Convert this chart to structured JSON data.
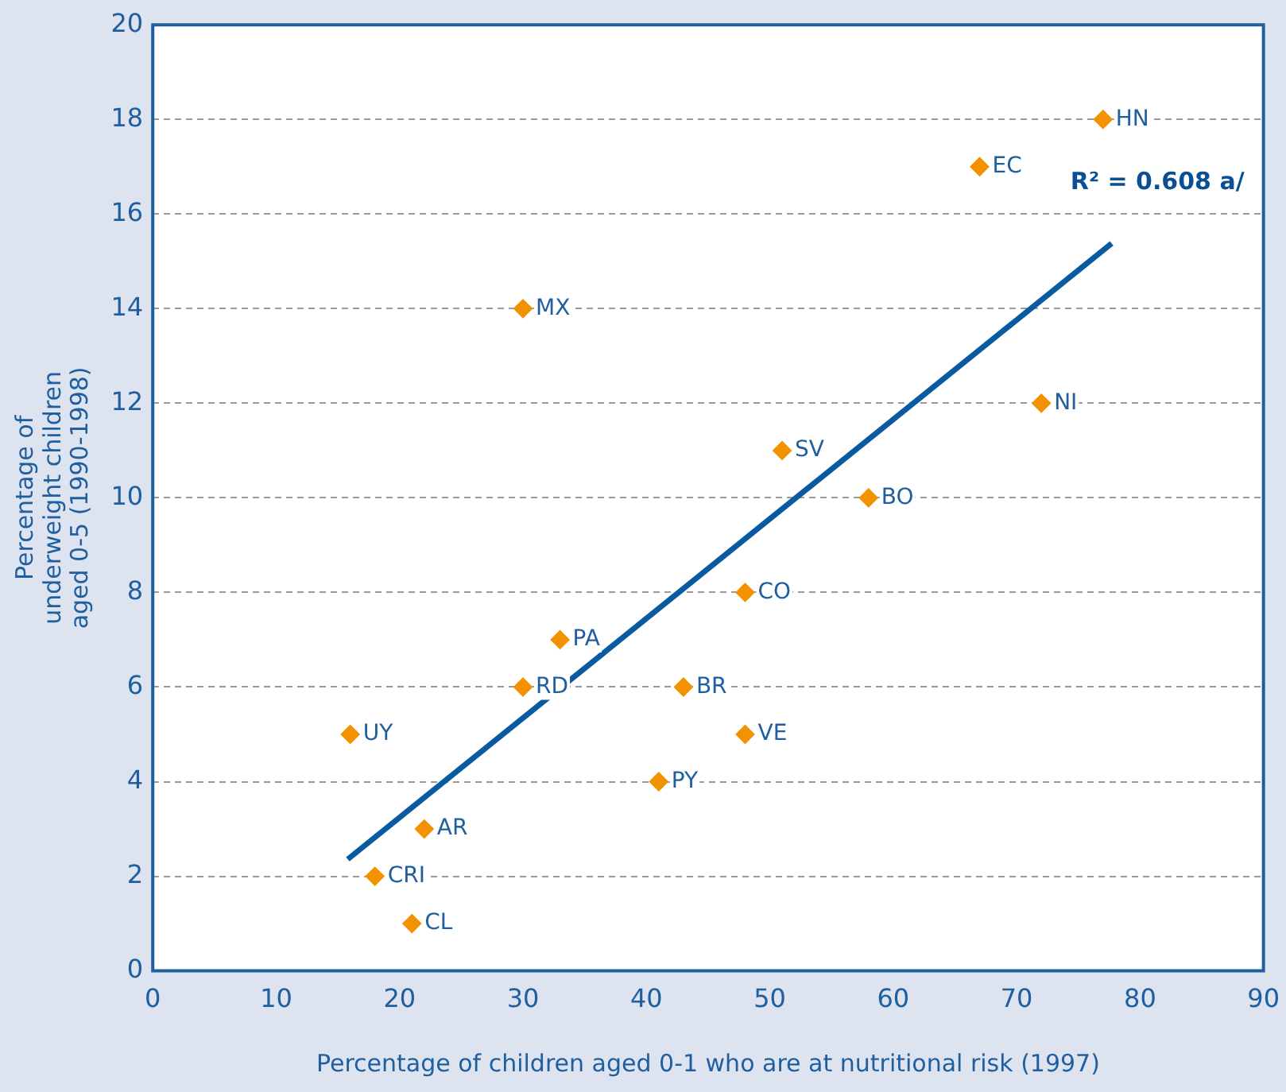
{
  "chart_data": {
    "type": "scatter",
    "xlabel": "Percentage of children aged 0-1 who are at nutritional risk (1997)",
    "ylabel": "Percentage of\nunderweight children\naged 0-5 (1990-1998)",
    "xlim": [
      0,
      90
    ],
    "xticks": [
      0,
      10,
      20,
      30,
      40,
      50,
      60,
      70,
      80,
      90
    ],
    "ylim": [
      0,
      20
    ],
    "yticks": [
      0,
      2,
      4,
      6,
      8,
      10,
      12,
      14,
      16,
      18,
      20
    ],
    "grid": "y",
    "legend": false,
    "marker": "diamond",
    "series": [
      {
        "type": "scatter",
        "color": "#f39200",
        "x": [
          77,
          67,
          30,
          72,
          51,
          58,
          48,
          33,
          30,
          43,
          16,
          48,
          41,
          22,
          18,
          21
        ],
        "values": [
          18,
          17,
          14,
          12,
          11,
          10,
          8,
          7,
          6,
          6,
          5,
          5,
          4,
          3,
          2,
          1
        ]
      },
      {
        "type": "line",
        "color": "#0a5aa0",
        "line_style": "solid",
        "marker": "none",
        "x": [
          15.8,
          77.7
        ],
        "values": [
          2.36,
          15.38
        ]
      }
    ],
    "annotations": [
      "R² = 0.608 a/",
      {
        "text": "HN",
        "x": 77,
        "y": 18
      },
      {
        "text": "EC",
        "x": 67,
        "y": 17
      },
      {
        "text": "MX",
        "x": 30,
        "y": 14
      },
      {
        "text": "NI",
        "x": 72,
        "y": 12
      },
      {
        "text": "SV",
        "x": 51,
        "y": 11
      },
      {
        "text": "BO",
        "x": 58,
        "y": 10
      },
      {
        "text": "CO",
        "x": 48,
        "y": 8
      },
      {
        "text": "PA",
        "x": 33,
        "y": 7
      },
      {
        "text": "RD",
        "x": 30,
        "y": 6
      },
      {
        "text": "BR",
        "x": 43,
        "y": 6
      },
      {
        "text": "UY",
        "x": 16,
        "y": 5
      },
      {
        "text": "VE",
        "x": 48,
        "y": 5
      },
      {
        "text": "PY",
        "x": 41,
        "y": 4
      },
      {
        "text": "AR",
        "x": 22,
        "y": 3
      },
      {
        "text": "CRI",
        "x": 18,
        "y": 2
      },
      {
        "text": "CL",
        "x": 21,
        "y": 1
      }
    ]
  }
}
